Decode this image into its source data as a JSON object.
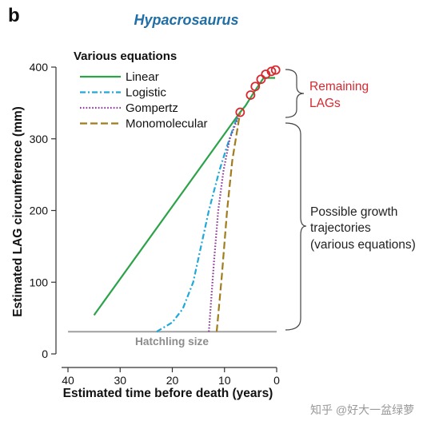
{
  "panel_label": "b",
  "watermark": "知乎 @好大一盆绿萝",
  "chart_data": {
    "type": "line",
    "title": "Hypacrosaurus",
    "xlabel": "Estimated time before death (years)",
    "ylabel": "Estimated LAG circumference (mm)",
    "xlim": [
      40,
      0
    ],
    "ylim": [
      0,
      400
    ],
    "x_reversed": true,
    "xticks": [
      40,
      30,
      20,
      10,
      0
    ],
    "yticks": [
      0,
      100,
      200,
      300,
      400
    ],
    "legend": {
      "title": "Various equations",
      "placement": "top-left"
    },
    "series": [
      {
        "name": "Linear",
        "color": "#2ca349",
        "dash": "solid",
        "points": [
          [
            35,
            54
          ],
          [
            7,
            337
          ],
          [
            6,
            346
          ],
          [
            4.5,
            363
          ],
          [
            3.6,
            373
          ],
          [
            2.5,
            385
          ],
          [
            0.3,
            385
          ]
        ]
      },
      {
        "name": "Logistic",
        "color": "#1fa8d8",
        "dash": "dashdot",
        "points": [
          [
            23,
            31
          ],
          [
            20,
            44
          ],
          [
            18,
            63
          ],
          [
            16,
            100
          ],
          [
            14.5,
            150
          ],
          [
            13,
            200
          ],
          [
            11,
            255
          ],
          [
            9.5,
            290
          ],
          [
            8,
            322
          ],
          [
            7,
            337
          ]
        ]
      },
      {
        "name": "Gompertz",
        "color": "#8b3a96",
        "dash": "dotted",
        "points": [
          [
            13,
            31
          ],
          [
            12.5,
            80
          ],
          [
            12,
            130
          ],
          [
            11.2,
            200
          ],
          [
            10.2,
            255
          ],
          [
            9,
            300
          ],
          [
            7,
            337
          ]
        ]
      },
      {
        "name": "Monomolecular",
        "color": "#a07c1c",
        "dash": "dashed",
        "points": [
          [
            11.5,
            31
          ],
          [
            10.5,
            110
          ],
          [
            9.5,
            200
          ],
          [
            8.5,
            270
          ],
          [
            7,
            337
          ]
        ]
      }
    ],
    "remaining_lags": {
      "color": "#d9282f",
      "points": [
        [
          7,
          337
        ],
        [
          5,
          361
        ],
        [
          4.1,
          373
        ],
        [
          3,
          383
        ],
        [
          2.1,
          390
        ],
        [
          1,
          394
        ],
        [
          0.2,
          396
        ]
      ]
    },
    "hatchling_size": {
      "label": "Hatchling size",
      "y": 31,
      "color": "#a6a6a6"
    },
    "annotations": {
      "remaining": {
        "text": [
          "Remaining",
          "LAGs"
        ],
        "color": "#d9282f"
      },
      "possible": {
        "text": [
          "Possible growth",
          "trajectories",
          "(various equations)"
        ],
        "color": "#222222"
      }
    }
  }
}
